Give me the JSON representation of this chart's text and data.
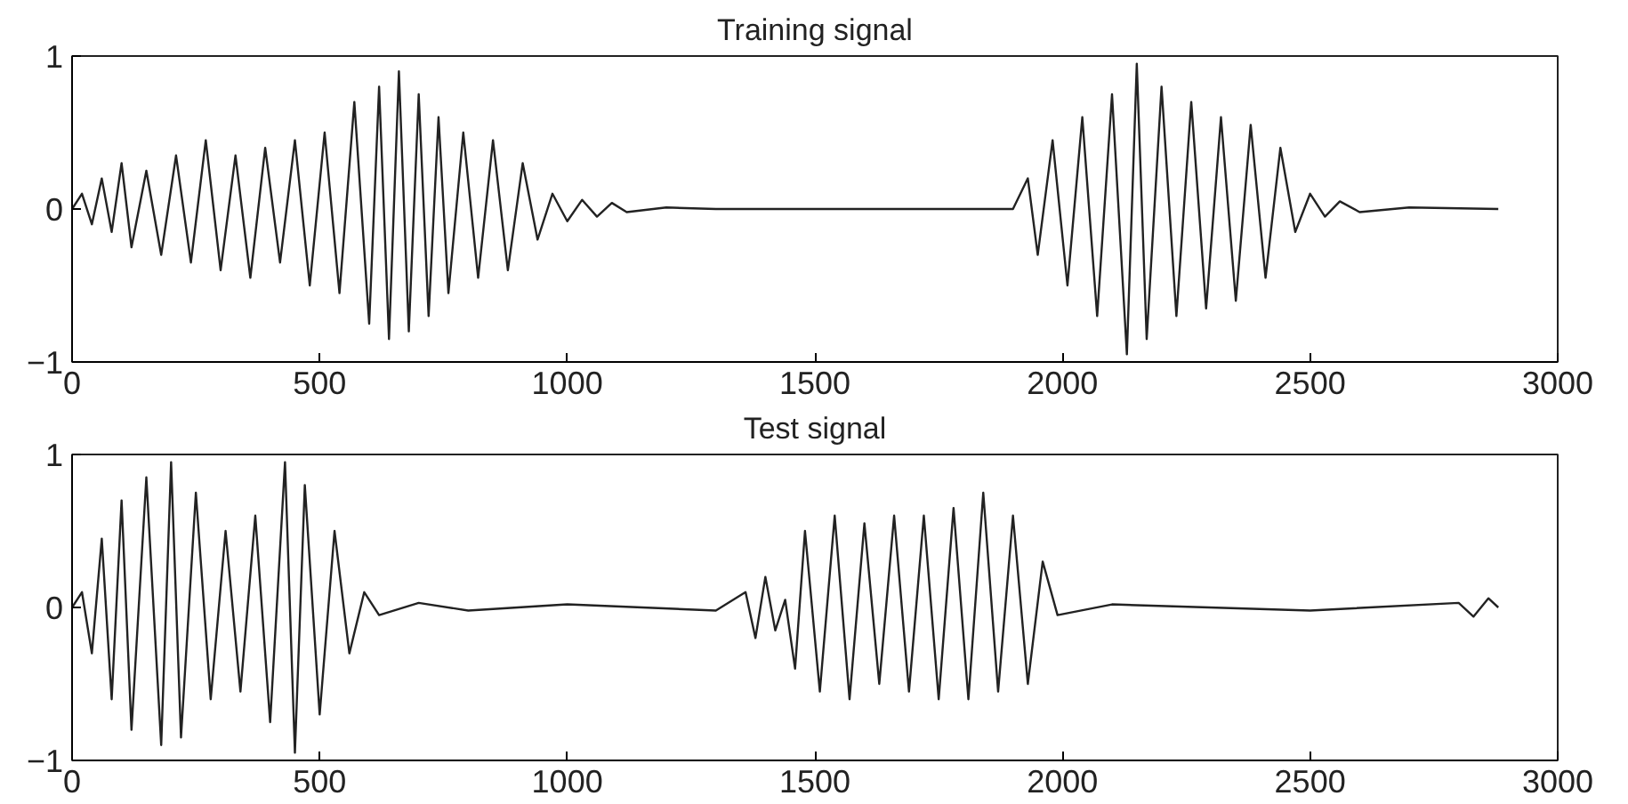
{
  "chart_data": [
    {
      "type": "line",
      "title": "Training signal",
      "xlim": [
        0,
        3000
      ],
      "ylim": [
        -1,
        1
      ],
      "xticks": [
        0,
        500,
        1000,
        1500,
        2000,
        2500,
        3000
      ],
      "yticks": [
        -1,
        0,
        1
      ],
      "grid": false,
      "series": [
        {
          "color": "#222222",
          "x": [
            0,
            20,
            40,
            60,
            80,
            100,
            120,
            150,
            180,
            210,
            240,
            270,
            300,
            330,
            360,
            390,
            420,
            450,
            480,
            510,
            540,
            570,
            600,
            620,
            640,
            660,
            680,
            700,
            720,
            740,
            760,
            790,
            820,
            850,
            880,
            910,
            940,
            970,
            1000,
            1030,
            1060,
            1090,
            1120,
            1200,
            1300,
            1900,
            1930,
            1950,
            1980,
            2010,
            2040,
            2070,
            2100,
            2130,
            2150,
            2170,
            2200,
            2230,
            2260,
            2290,
            2320,
            2350,
            2380,
            2410,
            2440,
            2470,
            2500,
            2530,
            2560,
            2600,
            2700,
            2880
          ],
          "values": [
            0,
            0.1,
            -0.1,
            0.2,
            -0.15,
            0.3,
            -0.25,
            0.25,
            -0.3,
            0.35,
            -0.35,
            0.45,
            -0.4,
            0.35,
            -0.45,
            0.4,
            -0.35,
            0.45,
            -0.5,
            0.5,
            -0.55,
            0.7,
            -0.75,
            0.8,
            -0.85,
            0.9,
            -0.8,
            0.75,
            -0.7,
            0.6,
            -0.55,
            0.5,
            -0.45,
            0.45,
            -0.4,
            0.3,
            -0.2,
            0.1,
            -0.08,
            0.06,
            -0.05,
            0.04,
            -0.02,
            0.01,
            0,
            0,
            0.2,
            -0.3,
            0.45,
            -0.5,
            0.6,
            -0.7,
            0.75,
            -0.95,
            0.95,
            -0.85,
            0.8,
            -0.7,
            0.7,
            -0.65,
            0.6,
            -0.6,
            0.55,
            -0.45,
            0.4,
            -0.15,
            0.1,
            -0.05,
            0.05,
            -0.02,
            0.01,
            0
          ]
        }
      ]
    },
    {
      "type": "line",
      "title": "Test signal",
      "xlim": [
        0,
        3000
      ],
      "ylim": [
        -1,
        1
      ],
      "xticks": [
        0,
        500,
        1000,
        1500,
        2000,
        2500,
        3000
      ],
      "yticks": [
        -1,
        0,
        1
      ],
      "grid": false,
      "series": [
        {
          "color": "#222222",
          "x": [
            0,
            20,
            40,
            60,
            80,
            100,
            120,
            150,
            180,
            200,
            220,
            250,
            280,
            310,
            340,
            370,
            400,
            430,
            450,
            470,
            500,
            530,
            560,
            590,
            620,
            700,
            800,
            1000,
            1300,
            1360,
            1380,
            1400,
            1420,
            1440,
            1460,
            1480,
            1510,
            1540,
            1570,
            1600,
            1630,
            1660,
            1690,
            1720,
            1750,
            1780,
            1810,
            1840,
            1870,
            1900,
            1930,
            1960,
            1990,
            2100,
            2500,
            2800,
            2830,
            2860,
            2880
          ],
          "values": [
            0,
            0.1,
            -0.3,
            0.45,
            -0.6,
            0.7,
            -0.8,
            0.85,
            -0.9,
            0.95,
            -0.85,
            0.75,
            -0.6,
            0.5,
            -0.55,
            0.6,
            -0.75,
            0.95,
            -0.95,
            0.8,
            -0.7,
            0.5,
            -0.3,
            0.1,
            -0.05,
            0.03,
            -0.02,
            0.02,
            -0.02,
            0.1,
            -0.2,
            0.2,
            -0.15,
            0.05,
            -0.4,
            0.5,
            -0.55,
            0.6,
            -0.6,
            0.55,
            -0.5,
            0.6,
            -0.55,
            0.6,
            -0.6,
            0.65,
            -0.6,
            0.75,
            -0.55,
            0.6,
            -0.5,
            0.3,
            -0.05,
            0.02,
            -0.02,
            0.03,
            -0.06,
            0.06,
            0
          ]
        }
      ]
    }
  ]
}
